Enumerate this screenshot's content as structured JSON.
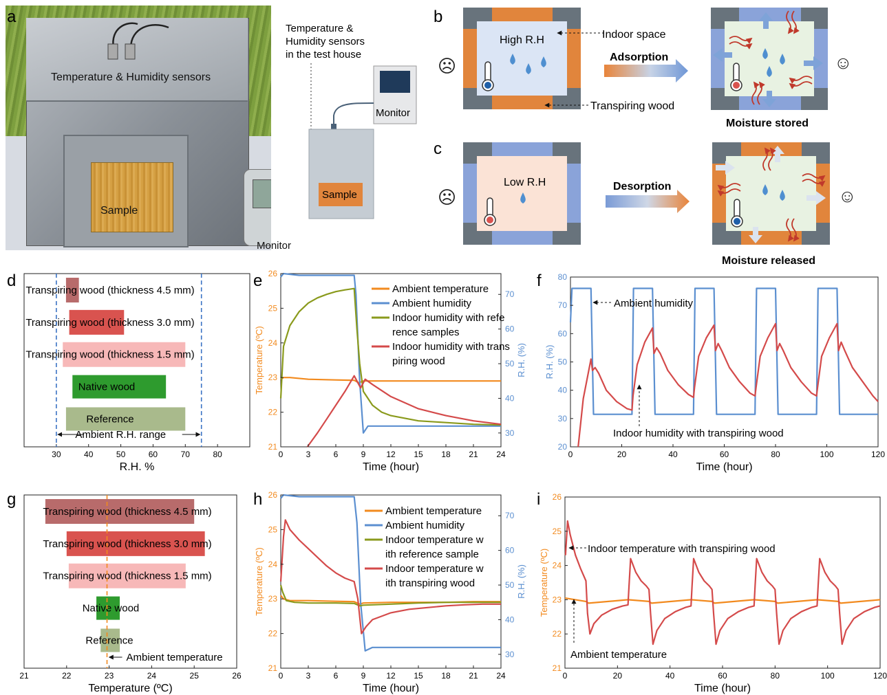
{
  "panels": {
    "a": "a",
    "b": "b",
    "c": "c",
    "d": "d",
    "e": "e",
    "f": "f",
    "g": "g",
    "h": "h",
    "i": "i"
  },
  "photo": {
    "sensors_label": "Temperature & Humidity sensors",
    "sample_label": "Sample",
    "monitor_label": "Monitor"
  },
  "schematic": {
    "title_line1": "Temperature &",
    "title_line2": "Humidity sensors",
    "title_line3": "in the test house",
    "monitor_label": "Monitor",
    "sample_label": "Sample"
  },
  "panel_b": {
    "room_label": "High R.H",
    "indoor_label": "Indoor space",
    "wood_label": "Transpiring wood",
    "arrow_label": "Adsorption",
    "result_label": "Moisture stored",
    "sad_face": "☹",
    "happy_face": "☺"
  },
  "panel_c": {
    "room_label": "Low R.H",
    "arrow_label": "Desorption",
    "result_label": "Moisture released",
    "sad_face": "☹",
    "happy_face": "☺"
  },
  "chart_data": [
    {
      "id": "d",
      "type": "bar",
      "orientation": "horizontal-range",
      "categories": [
        "Transpiring wood (thickness 4.5 mm)",
        "Transpiring wood (thickness 3.0 mm)",
        "Transpiring wood (thickness 1.5 mm)",
        "Native wood",
        "Reference"
      ],
      "ranges": [
        [
          33,
          37
        ],
        [
          34,
          51
        ],
        [
          32,
          70
        ],
        [
          35,
          64
        ],
        [
          33,
          70
        ]
      ],
      "colors": [
        "#b86b6b",
        "#d9534f",
        "#f7b8b8",
        "#2e9b2e",
        "#a9ba8c"
      ],
      "xlabel": "R.H. %",
      "xlim": [
        20,
        90
      ],
      "xticks": [
        30,
        40,
        50,
        60,
        70,
        80
      ],
      "reference_range": [
        30,
        75
      ],
      "annotation": "Ambient R.H. range"
    },
    {
      "id": "e",
      "type": "line",
      "xlabel": "Time (hour)",
      "ylabel_left": "Temperature (ºC)",
      "ylabel_right": "R.H. (%)",
      "xlim": [
        0,
        24
      ],
      "ylim_left": [
        21,
        26
      ],
      "ylim_right": [
        26,
        76
      ],
      "xticks": [
        0,
        3,
        6,
        9,
        12,
        15,
        18,
        21,
        24
      ],
      "yticks_left": [
        21,
        22,
        23,
        24,
        25,
        26
      ],
      "yticks_right": [
        30,
        40,
        50,
        60,
        70
      ],
      "series": [
        {
          "name": "Ambient temperature",
          "color": "#f28a1e",
          "axis": "left",
          "x": [
            0,
            0.3,
            1,
            3,
            6,
            8,
            8.5,
            9,
            12,
            15,
            18,
            21,
            24
          ],
          "y": [
            22.95,
            23.0,
            23.0,
            22.95,
            22.93,
            22.92,
            22.85,
            22.9,
            22.9,
            22.9,
            22.9,
            22.9,
            22.9
          ]
        },
        {
          "name": "Ambient humidity",
          "color": "#5b8fd0",
          "axis": "right",
          "x": [
            0,
            0.3,
            2,
            5,
            8,
            8.2,
            8.6,
            9.0,
            9.5,
            12,
            15,
            18,
            21,
            24
          ],
          "y": [
            75,
            76,
            75.5,
            75.5,
            75.5,
            70,
            45,
            30,
            32,
            32,
            32,
            32,
            32,
            32
          ]
        },
        {
          "name": "Indoor humidity with reference samples",
          "color": "#8a9a1c",
          "axis": "right",
          "x": [
            0,
            0.3,
            1,
            2,
            3,
            4,
            5,
            6,
            7,
            8,
            8.3,
            8.6,
            9,
            10,
            11,
            12,
            15,
            18,
            21,
            24
          ],
          "y": [
            40,
            55,
            61,
            65,
            67.5,
            69,
            70,
            70.8,
            71.3,
            71.7,
            60,
            50,
            42,
            38,
            36,
            35,
            33.5,
            33,
            32.5,
            32.3
          ]
        },
        {
          "name": "Indoor humidity with transpiring wood",
          "color": "#d44a4a",
          "axis": "right",
          "x": [
            2.9,
            4,
            5,
            6,
            7,
            8,
            8.3,
            8.7,
            9.2,
            10,
            12,
            15,
            18,
            21,
            24
          ],
          "y": [
            26,
            30,
            34,
            38,
            42,
            46.5,
            45,
            43,
            45.5,
            44,
            40.5,
            37,
            35,
            33.5,
            32.5
          ]
        }
      ]
    },
    {
      "id": "f",
      "type": "line",
      "xlabel": "Time (hour)",
      "ylabel": "R.H. (%)",
      "xlim": [
        0,
        120
      ],
      "ylim": [
        20,
        80
      ],
      "xticks": [
        0,
        20,
        40,
        60,
        80,
        100,
        120
      ],
      "yticks": [
        20,
        30,
        40,
        50,
        60,
        70,
        80
      ],
      "annotations": [
        "Ambient humidity",
        "Indoor humidity with transpiring wood"
      ],
      "series": [
        {
          "name": "Ambient humidity",
          "color": "#5b8fd0",
          "x": [
            0,
            0.6,
            8,
            9,
            24,
            24.6,
            32,
            33,
            48,
            48.6,
            56,
            57,
            72,
            72.6,
            80,
            81,
            96,
            96.6,
            104,
            105,
            120
          ],
          "y": [
            64,
            76,
            76,
            31.5,
            31.5,
            76,
            76,
            31.5,
            31.5,
            76,
            76,
            31.5,
            31.5,
            76,
            76,
            31.5,
            31.5,
            76,
            76,
            31.5,
            31.5
          ]
        },
        {
          "name": "Indoor humidity with transpiring wood",
          "color": "#d44a4a",
          "x": [
            3,
            5,
            8,
            8.6,
            9.6,
            11,
            14,
            18,
            22,
            24,
            24.4,
            26,
            29,
            32,
            32.6,
            33.6,
            35,
            38,
            42,
            46,
            48,
            48.4,
            50,
            53,
            56,
            56.6,
            57.6,
            59,
            62,
            66,
            70,
            72,
            72.4,
            74,
            77,
            80,
            80.6,
            81.6,
            83,
            86,
            90,
            94,
            96,
            96.4,
            98,
            101,
            104,
            104.6,
            105.6,
            107,
            110,
            114,
            118,
            120
          ],
          "y": [
            20,
            37,
            51,
            47,
            48,
            46,
            40,
            36,
            33.5,
            33,
            38,
            49,
            57,
            62,
            53,
            55,
            53,
            47,
            42,
            38.5,
            37.5,
            41,
            52,
            58.5,
            63,
            54,
            56.5,
            54,
            48,
            43,
            39,
            38,
            41,
            52,
            58.5,
            63.5,
            54,
            56.5,
            54,
            48,
            43,
            39,
            38,
            41,
            52,
            58.5,
            63.5,
            54,
            57,
            54,
            48,
            43,
            38,
            36
          ]
        }
      ]
    },
    {
      "id": "g",
      "type": "bar",
      "orientation": "horizontal-range",
      "categories": [
        "Transpiring wood (thickness 4.5 mm)",
        "Transpiring wood (thickness 3.0 mm)",
        "Transpiring wood (thickness 1.5 mm)",
        "Native wood",
        "Reference"
      ],
      "ranges": [
        [
          21.5,
          25.0
        ],
        [
          22.0,
          25.25
        ],
        [
          22.05,
          24.8
        ],
        [
          22.7,
          23.25
        ],
        [
          22.8,
          23.25
        ]
      ],
      "colors": [
        "#b86b6b",
        "#d9534f",
        "#f7b8b8",
        "#2e9b2e",
        "#a9ba8c"
      ],
      "xlabel": "Temperature (ºC)",
      "xlim": [
        21,
        26
      ],
      "xticks": [
        21,
        22,
        23,
        24,
        25,
        26
      ],
      "reference_value": 22.95,
      "annotation": "Ambient temperature"
    },
    {
      "id": "h",
      "type": "line",
      "xlabel": "Time (hour)",
      "ylabel_left": "Temperature (ºC)",
      "ylabel_right": "R.H. (%)",
      "xlim": [
        0,
        24
      ],
      "ylim_left": [
        21,
        26
      ],
      "ylim_right": [
        26,
        76
      ],
      "xticks": [
        0,
        3,
        6,
        9,
        12,
        15,
        18,
        21,
        24
      ],
      "yticks_left": [
        21,
        22,
        23,
        24,
        25,
        26
      ],
      "yticks_right": [
        30,
        40,
        50,
        60,
        70
      ],
      "series": [
        {
          "name": "Ambient temperature",
          "color": "#f28a1e",
          "axis": "left",
          "x": [
            0,
            0.3,
            1,
            3,
            6,
            8,
            8.6,
            9,
            12,
            15,
            18,
            21,
            24
          ],
          "y": [
            23.1,
            23.0,
            22.95,
            22.95,
            22.93,
            22.92,
            22.85,
            22.88,
            22.9,
            22.9,
            22.9,
            22.92,
            22.92
          ]
        },
        {
          "name": "Ambient humidity",
          "color": "#5b8fd0",
          "axis": "right",
          "x": [
            0,
            0.3,
            2,
            5,
            8,
            8.3,
            8.7,
            9.2,
            10,
            12,
            15,
            18,
            21,
            24
          ],
          "y": [
            75,
            76,
            75.5,
            75.5,
            75.5,
            68,
            45,
            31,
            32,
            32,
            32,
            32,
            32,
            32
          ]
        },
        {
          "name": "Indoor temperature with reference sample",
          "color": "#8a9a1c",
          "axis": "left",
          "x": [
            0,
            0.2,
            0.6,
            1.5,
            3,
            6,
            8,
            8.6,
            9,
            12,
            15,
            18,
            21,
            24
          ],
          "y": [
            23.4,
            23.2,
            22.95,
            22.9,
            22.88,
            22.88,
            22.87,
            22.8,
            22.82,
            22.85,
            22.88,
            22.9,
            22.9,
            22.9
          ]
        },
        {
          "name": "Indoor temperature with transpiring wood",
          "color": "#d44a4a",
          "axis": "left",
          "x": [
            0,
            0.3,
            0.5,
            1,
            2,
            3,
            4,
            5,
            6,
            7,
            8,
            8.4,
            8.8,
            9.3,
            10,
            11,
            12,
            14,
            16,
            18,
            20,
            22,
            24
          ],
          "y": [
            23.5,
            24.8,
            25.28,
            25.0,
            24.7,
            24.45,
            24.2,
            23.95,
            23.75,
            23.6,
            23.5,
            23.0,
            22.0,
            22.2,
            22.4,
            22.5,
            22.6,
            22.7,
            22.75,
            22.8,
            22.83,
            22.85,
            22.85
          ]
        }
      ]
    },
    {
      "id": "i",
      "type": "line",
      "xlabel": "Time (hour)",
      "ylabel": "Temperature (ºC)",
      "xlim": [
        0,
        120
      ],
      "ylim": [
        21,
        26
      ],
      "xticks": [
        0,
        20,
        40,
        60,
        80,
        100,
        120
      ],
      "yticks": [
        21,
        22,
        23,
        24,
        25,
        26
      ],
      "annotations": [
        "Indoor temperature with transpiring wood",
        "Ambient temperature"
      ],
      "series": [
        {
          "name": "Ambient temperature",
          "color": "#f28a1e",
          "x": [
            0,
            8,
            9,
            24,
            32,
            33,
            48,
            56,
            57,
            72,
            80,
            81,
            96,
            104,
            105,
            120
          ],
          "y": [
            23.05,
            22.95,
            22.9,
            23.0,
            22.95,
            22.9,
            23.0,
            22.95,
            22.9,
            23.0,
            22.95,
            22.9,
            23.0,
            22.95,
            22.9,
            23.0
          ]
        },
        {
          "name": "Indoor temperature with transpiring wood",
          "color": "#d44a4a",
          "x": [
            0.2,
            1,
            2,
            4,
            6,
            8,
            8.6,
            9.5,
            11,
            14,
            18,
            22,
            24,
            24.4,
            25,
            27,
            29,
            31,
            32,
            32.6,
            33.5,
            35,
            38,
            42,
            46,
            48,
            48.4,
            49,
            51,
            53,
            55,
            56,
            56.6,
            57.5,
            59,
            62,
            66,
            70,
            72,
            72.4,
            73,
            75,
            77,
            79,
            80,
            80.6,
            81.5,
            83,
            86,
            90,
            94,
            96,
            96.4,
            97,
            99,
            101,
            103,
            104,
            104.6,
            105.5,
            107,
            110,
            114,
            118,
            120
          ],
          "y": [
            24.3,
            25.3,
            24.9,
            24.3,
            23.9,
            23.55,
            22.6,
            22.0,
            22.3,
            22.55,
            22.72,
            22.82,
            22.85,
            23.4,
            24.2,
            23.8,
            23.55,
            23.4,
            23.3,
            22.6,
            21.7,
            22.1,
            22.45,
            22.65,
            22.78,
            22.82,
            23.4,
            24.2,
            23.8,
            23.55,
            23.4,
            23.3,
            22.6,
            21.7,
            22.1,
            22.45,
            22.65,
            22.78,
            22.82,
            23.4,
            24.2,
            23.8,
            23.55,
            23.4,
            23.3,
            22.6,
            21.7,
            22.1,
            22.45,
            22.65,
            22.78,
            22.82,
            23.4,
            24.2,
            23.8,
            23.55,
            23.4,
            23.3,
            22.6,
            21.7,
            22.1,
            22.45,
            22.65,
            22.78,
            22.82
          ]
        }
      ]
    }
  ]
}
